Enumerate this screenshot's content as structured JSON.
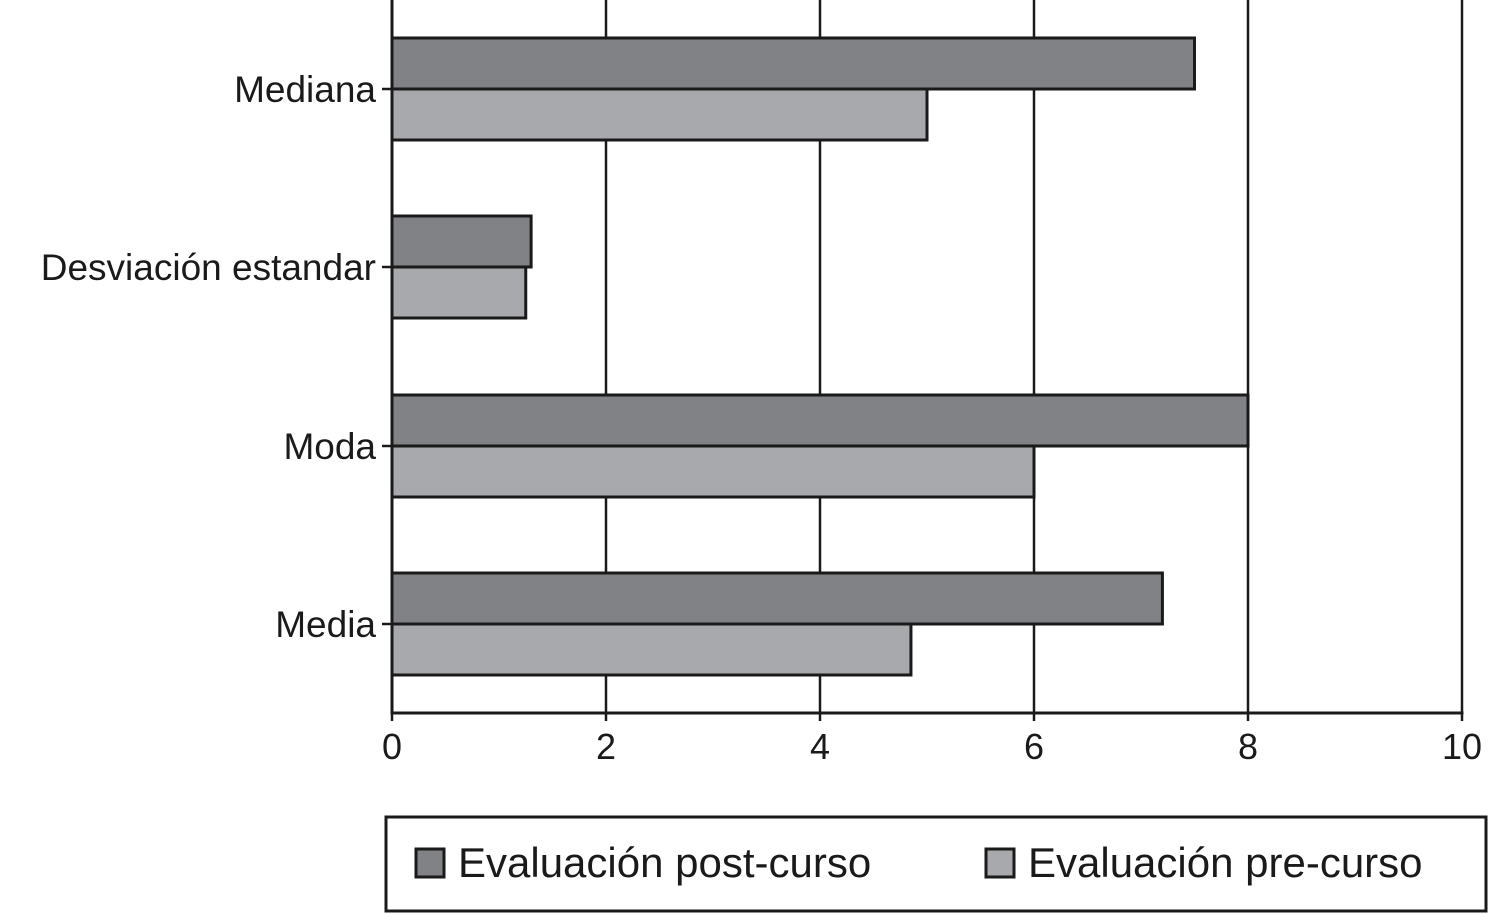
{
  "chart_data": {
    "type": "bar",
    "orientation": "horizontal",
    "title": "",
    "xlabel": "",
    "ylabel": "",
    "categories": [
      "Mediana",
      "Desviación estandar",
      "Moda",
      "Media"
    ],
    "series": [
      {
        "name": "Evaluación post-curso",
        "values": [
          7.5,
          1.3,
          8.0,
          7.2
        ],
        "color": "#808285"
      },
      {
        "name": "Evaluación pre-curso",
        "values": [
          5.0,
          1.25,
          6.0,
          4.85
        ],
        "color": "#a8a9ac"
      }
    ],
    "xlim": [
      0,
      10
    ],
    "xticks": [
      "0",
      "2",
      "4",
      "6",
      "8",
      "10"
    ],
    "grid": "vertical",
    "legend_position": "bottom"
  },
  "colors": {
    "outline": "#1a1a1a",
    "post_bar": "#808285",
    "pre_bar": "#a8a9ac"
  }
}
